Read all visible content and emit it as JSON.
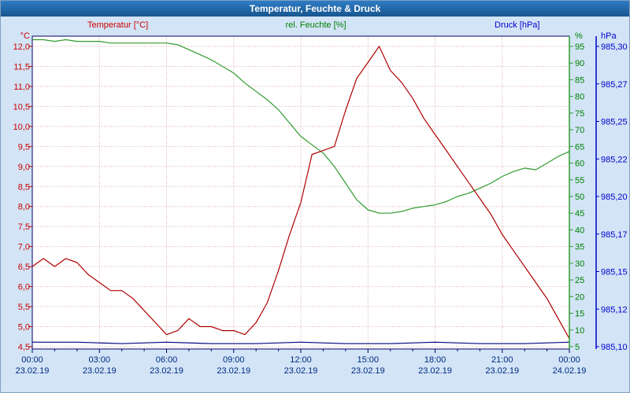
{
  "window": {
    "title": "Temperatur, Feuchte & Druck"
  },
  "legend": {
    "temperature": "Temperatur [°C]",
    "humidity": "rel. Feuchte [%]",
    "pressure": "Druck [hPa]"
  },
  "colors": {
    "titlebar": "#1c5fa8",
    "background": "#d2e4f6",
    "plot_background": "#ffffff",
    "frame": "#000066",
    "grid": "#dcaaaa",
    "temperature": "#b00000",
    "humidity": "#2e9b2e",
    "pressure": "#000080",
    "temperature_labels": "#cc0000",
    "humidity_labels": "#008000",
    "pressure_labels": "#0000cc",
    "time_labels": "#002a80"
  },
  "chart_data": {
    "type": "line",
    "title": "Temperatur, Feuchte & Druck",
    "grid": true,
    "x_axis": {
      "hours_start": 0,
      "hours_end": 24,
      "tick_hours": [
        0,
        3,
        6,
        9,
        12,
        15,
        18,
        21,
        24
      ],
      "tick_labels": [
        "00:00",
        "03:00",
        "06:00",
        "09:00",
        "12:00",
        "15:00",
        "18:00",
        "21:00",
        "00:00"
      ],
      "tick_dates": [
        "23.02.19",
        "23.02.19",
        "23.02.19",
        "23.02.19",
        "23.02.19",
        "23.02.19",
        "23.02.19",
        "23.02.19",
        "24.02.19"
      ]
    },
    "axes": {
      "temperature": {
        "label": "Temperatur [°C]",
        "unit": "°C",
        "side": "left",
        "min": 4.5,
        "max": 12.0,
        "tick_step": 0.5,
        "ticks": [
          "12,0",
          "11,5",
          "11,0",
          "10,5",
          "10,0",
          "9,5",
          "9,0",
          "8,5",
          "8,0",
          "7,5",
          "7,0",
          "6,5",
          "6,0",
          "5,5",
          "5,0",
          "4,5"
        ]
      },
      "humidity": {
        "label": "rel. Feuchte [%]",
        "unit": "%",
        "side": "right",
        "min": 5,
        "max": 95,
        "tick_step": 5,
        "ticks": [
          "95",
          "90",
          "85",
          "80",
          "75",
          "70",
          "65",
          "60",
          "55",
          "50",
          "45",
          "40",
          "35",
          "30",
          "25",
          "20",
          "15",
          "10",
          "5"
        ]
      },
      "pressure": {
        "label": "Druck [hPa]",
        "unit": "hPa",
        "side": "far-right",
        "min": 985.1,
        "max": 985.3,
        "tick_step": 0.025,
        "ticks": [
          "985,30",
          "985,27",
          "985,25",
          "985,22",
          "985,20",
          "985,17",
          "985,15",
          "985,12",
          "985,10"
        ]
      }
    },
    "series": [
      {
        "name": "Temperatur",
        "axis": "temperature",
        "color": "#b00000",
        "values": [
          6.5,
          6.7,
          6.5,
          6.7,
          6.6,
          6.3,
          6.1,
          5.9,
          5.9,
          5.7,
          5.4,
          5.1,
          4.8,
          4.9,
          5.2,
          5.0,
          5.0,
          4.9,
          4.9,
          4.8,
          5.1,
          5.6,
          6.4,
          7.3,
          8.1,
          9.3,
          9.4,
          9.5,
          10.4,
          11.2,
          11.6,
          12.0,
          11.4,
          11.1,
          10.7,
          10.2,
          9.8,
          9.4,
          9.0,
          8.6,
          8.2,
          7.8,
          7.3,
          6.9,
          6.5,
          6.1,
          5.7,
          5.2,
          4.7
        ]
      },
      {
        "name": "rel. Feuchte",
        "axis": "humidity",
        "color": "#2e9b2e",
        "values": [
          97,
          97,
          96.5,
          97,
          96.5,
          96.5,
          96.5,
          96,
          96,
          96,
          96,
          96,
          96,
          95.5,
          94,
          92.5,
          91,
          89,
          87,
          84,
          81.5,
          79,
          76,
          72,
          68,
          65.5,
          63,
          59,
          54,
          49,
          46,
          45,
          45,
          45.5,
          46.5,
          47,
          47.5,
          48.5,
          50,
          51,
          52.5,
          54,
          56,
          57.5,
          58.5,
          58,
          60,
          62,
          63.5
        ]
      },
      {
        "name": "Druck",
        "axis": "pressure",
        "color": "#000080",
        "values": [
          985.103,
          985.103,
          985.102,
          985.103,
          985.102,
          985.102,
          985.103,
          985.102,
          985.102,
          985.103,
          985.102,
          985.102,
          985.103
        ]
      }
    ]
  }
}
